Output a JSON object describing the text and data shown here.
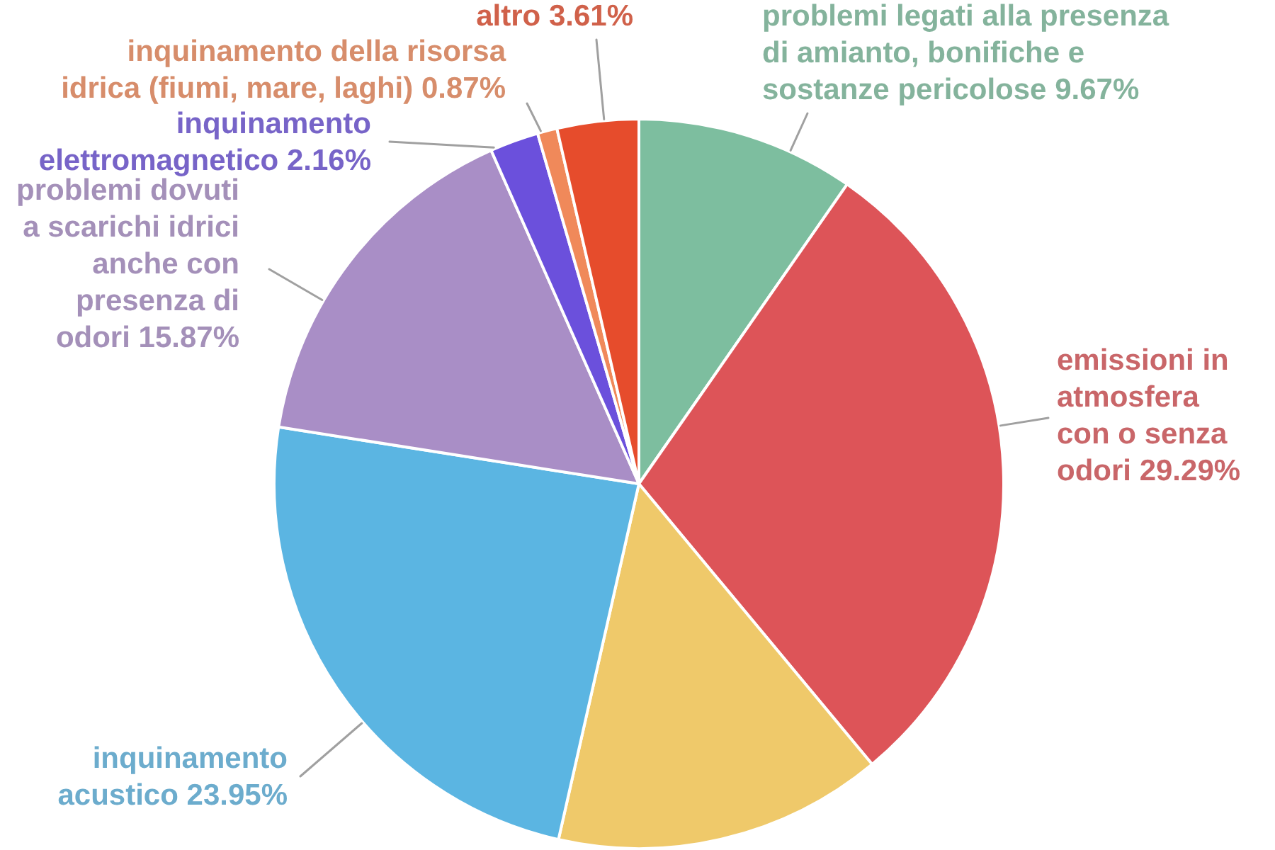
{
  "chart_data": {
    "type": "pie",
    "categories": [
      "problemi legati alla presenza di amianto, bonifiche e sostanze pericolose",
      "emissioni in atmosfera con o senza odori",
      null,
      "inquinamento acustico",
      "problemi dovuti a scarichi idrici anche con presenza di odori",
      "inquinamento elettromagnetico",
      "inquinamento della risorsa idrica (fiumi, mare, laghi)",
      "altro"
    ],
    "values": [
      9.67,
      29.29,
      14.58,
      23.95,
      15.87,
      2.16,
      0.87,
      3.61
    ],
    "value_labels": [
      "9.67%",
      "29.29%",
      null,
      "23.95%",
      "15.87%",
      "2.16%",
      "0.87%",
      "3.61%"
    ],
    "colors": [
      "#7dbe9f",
      "#dd5458",
      "#efc96a",
      "#5bb5e2",
      "#a98ec6",
      "#6b50dc",
      "#f0895a",
      "#e64c2c"
    ]
  }
}
